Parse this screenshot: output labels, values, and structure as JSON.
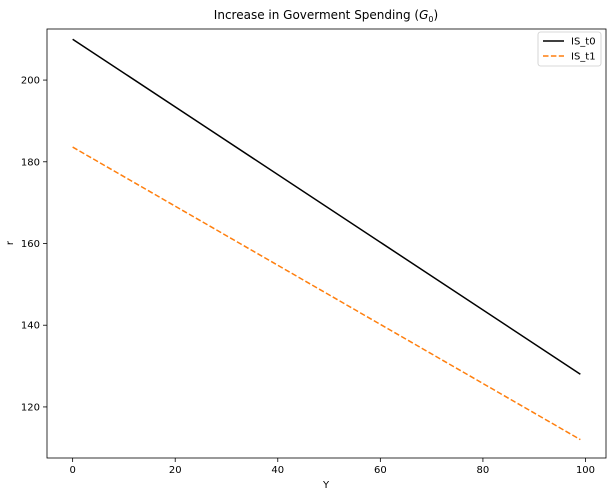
{
  "chart_data": {
    "type": "line",
    "title": "Increase in Goverment Spending (",
    "title_math": "G",
    "title_math_sub": "0",
    "title_end": ")",
    "xlabel": "Y",
    "ylabel": "r",
    "xlim": [
      -5,
      104
    ],
    "ylim": [
      107.5,
      212.5
    ],
    "xticks": [
      0,
      20,
      40,
      60,
      80,
      100
    ],
    "yticks": [
      120,
      140,
      160,
      180,
      200
    ],
    "grid": false,
    "legend_position": "top-right",
    "series": [
      {
        "name": "IS_t0",
        "x": [
          0,
          99
        ],
        "y": [
          210,
          128
        ],
        "color": "#000000",
        "style": "solid"
      },
      {
        "name": "IS_t1",
        "x": [
          0,
          99
        ],
        "y": [
          183.6,
          112
        ],
        "color": "#ff7f0e",
        "style": "dashed"
      }
    ]
  }
}
